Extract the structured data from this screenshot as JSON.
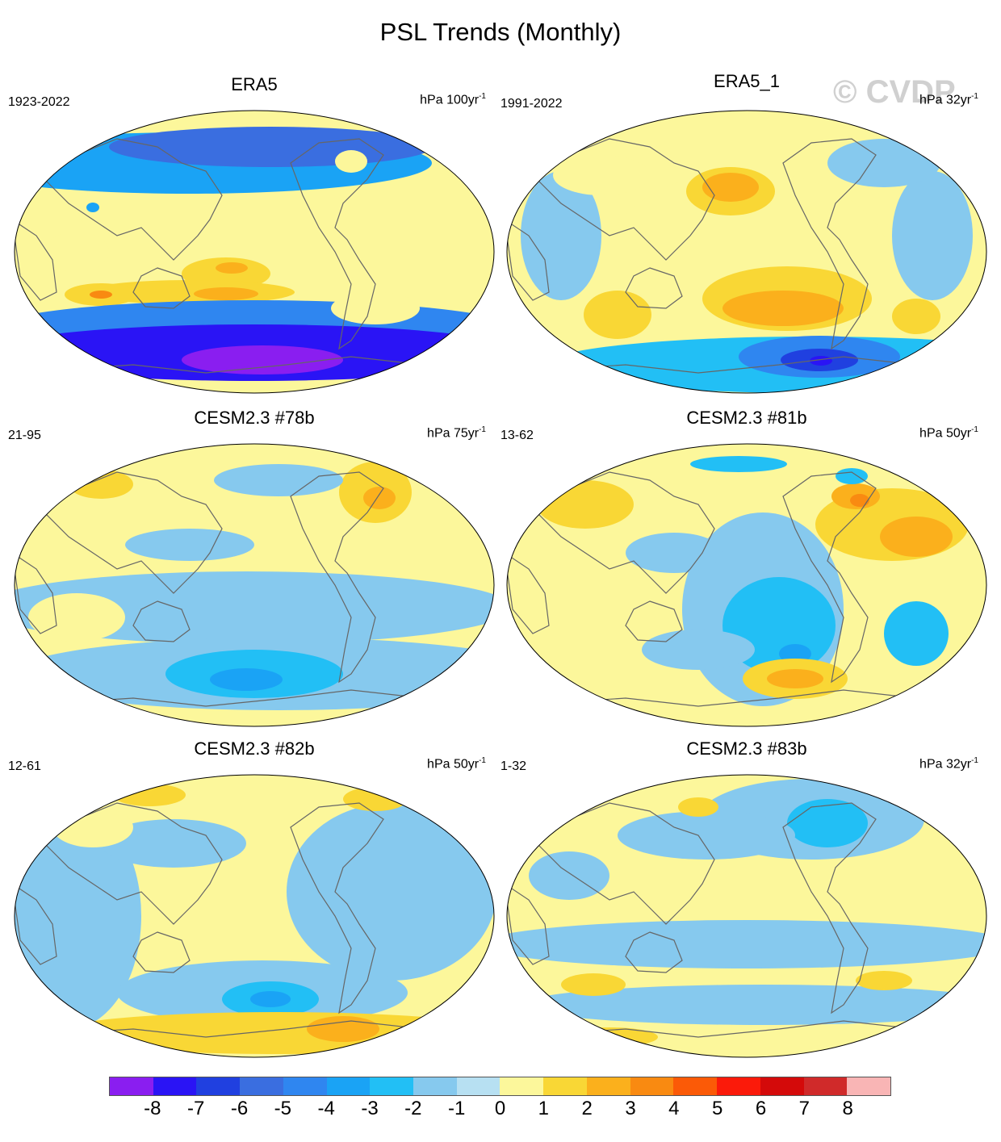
{
  "title": "PSL Trends (Monthly)",
  "watermark": "© CVDP",
  "panels": [
    {
      "title": "ERA5",
      "period": "1923-2022",
      "units": "hPa 100yr",
      "units_exp": "-1",
      "blobs": [
        {
          "cx": -35,
          "cy": 27,
          "rx": 55,
          "ry": 20,
          "c": 2
        },
        {
          "cx": -28,
          "cy": 20,
          "rx": 20,
          "ry": 7,
          "c": 3
        },
        {
          "cx": -80,
          "cy": 50,
          "rx": 130,
          "ry": 15,
          "c": 2
        },
        {
          "cx": -35,
          "cy": 52,
          "rx": 40,
          "ry": 8,
          "c": 3
        },
        {
          "cx": -190,
          "cy": 53,
          "rx": 45,
          "ry": 14,
          "c": 2
        },
        {
          "cx": -190,
          "cy": 53,
          "rx": 14,
          "ry": 5,
          "c": 4
        },
        {
          "cx": 0,
          "cy": 98,
          "rx": 330,
          "ry": 38,
          "c": -4
        },
        {
          "cx": 0,
          "cy": 125,
          "rx": 330,
          "ry": 35,
          "c": -7
        },
        {
          "cx": 10,
          "cy": 134,
          "rx": 100,
          "ry": 18,
          "c": -8
        },
        {
          "cx": -80,
          "cy": -110,
          "rx": 300,
          "ry": 38,
          "c": -3
        },
        {
          "cx": 20,
          "cy": -130,
          "rx": 200,
          "ry": 25,
          "c": -5
        },
        {
          "cx": 120,
          "cy": -112,
          "rx": 20,
          "ry": 14,
          "c": 1
        },
        {
          "cx": -195,
          "cy": -52,
          "rx": 30,
          "ry": 18,
          "c": 1
        },
        {
          "cx": -200,
          "cy": -55,
          "rx": 8,
          "ry": 6,
          "c": -3
        },
        {
          "cx": 150,
          "cy": 70,
          "rx": 55,
          "ry": 20,
          "c": 1
        },
        {
          "cx": -220,
          "cy": 0,
          "rx": 40,
          "ry": 25,
          "c": 1
        }
      ]
    },
    {
      "title": "ERA5_1",
      "period": "1991-2022",
      "units": "hPa 32yr",
      "units_exp": "-1",
      "blobs": [
        {
          "cx": 0,
          "cy": 20,
          "rx": 180,
          "ry": 120,
          "c": 1
        },
        {
          "cx": -20,
          "cy": -75,
          "rx": 55,
          "ry": 30,
          "c": 2
        },
        {
          "cx": -20,
          "cy": -80,
          "rx": 35,
          "ry": 18,
          "c": 3
        },
        {
          "cx": 50,
          "cy": 58,
          "rx": 105,
          "ry": 40,
          "c": 2
        },
        {
          "cx": 45,
          "cy": 70,
          "rx": 75,
          "ry": 22,
          "c": 3
        },
        {
          "cx": -160,
          "cy": 78,
          "rx": 42,
          "ry": 30,
          "c": 2
        },
        {
          "cx": 210,
          "cy": 80,
          "rx": 30,
          "ry": 22,
          "c": 2
        },
        {
          "cx": 80,
          "cy": 140,
          "rx": 330,
          "ry": 35,
          "c": -2
        },
        {
          "cx": 90,
          "cy": 130,
          "rx": 100,
          "ry": 26,
          "c": -4
        },
        {
          "cx": 90,
          "cy": 134,
          "rx": 48,
          "ry": 14,
          "c": -6
        },
        {
          "cx": 92,
          "cy": 135,
          "rx": 14,
          "ry": 6,
          "c": -7
        },
        {
          "cx": -230,
          "cy": -20,
          "rx": 50,
          "ry": 80,
          "c": -1
        },
        {
          "cx": 230,
          "cy": -20,
          "rx": 50,
          "ry": 80,
          "c": -1
        },
        {
          "cx": 170,
          "cy": -110,
          "rx": 70,
          "ry": 30,
          "c": -1
        },
        {
          "cx": -180,
          "cy": -95,
          "rx": 60,
          "ry": 25,
          "c": 1
        }
      ]
    },
    {
      "title": "CESM2.3 #78b",
      "period": "21-95",
      "units": "hPa 75yr",
      "units_exp": "-1",
      "blobs": [
        {
          "cx": -10,
          "cy": 28,
          "rx": 330,
          "ry": 45,
          "c": -1
        },
        {
          "cx": 30,
          "cy": 110,
          "rx": 330,
          "ry": 45,
          "c": -1
        },
        {
          "cx": 0,
          "cy": 110,
          "rx": 110,
          "ry": 30,
          "c": -2
        },
        {
          "cx": -10,
          "cy": 117,
          "rx": 45,
          "ry": 14,
          "c": -3
        },
        {
          "cx": 150,
          "cy": -115,
          "rx": 45,
          "ry": 38,
          "c": 2
        },
        {
          "cx": 155,
          "cy": -108,
          "rx": 20,
          "ry": 14,
          "c": 3
        },
        {
          "cx": -190,
          "cy": -125,
          "rx": 40,
          "ry": 18,
          "c": 2
        },
        {
          "cx": -80,
          "cy": -50,
          "rx": 80,
          "ry": 20,
          "c": -1
        },
        {
          "cx": 30,
          "cy": -130,
          "rx": 80,
          "ry": 20,
          "c": -1
        },
        {
          "cx": -220,
          "cy": 40,
          "rx": 60,
          "ry": 30,
          "c": 1
        }
      ]
    },
    {
      "title": "CESM2.3 #81b",
      "period": "13-62",
      "units": "hPa 50yr",
      "units_exp": "-1",
      "blobs": [
        {
          "cx": 20,
          "cy": 30,
          "rx": 100,
          "ry": 120,
          "c": -1
        },
        {
          "cx": 40,
          "cy": 50,
          "rx": 70,
          "ry": 60,
          "c": -2
        },
        {
          "cx": 60,
          "cy": 85,
          "rx": 20,
          "ry": 12,
          "c": -3
        },
        {
          "cx": 60,
          "cy": 116,
          "rx": 65,
          "ry": 25,
          "c": 2
        },
        {
          "cx": 60,
          "cy": 116,
          "rx": 35,
          "ry": 12,
          "c": 3
        },
        {
          "cx": 180,
          "cy": -75,
          "rx": 95,
          "ry": 45,
          "c": 2
        },
        {
          "cx": 210,
          "cy": -60,
          "rx": 45,
          "ry": 25,
          "c": 3
        },
        {
          "cx": 135,
          "cy": -110,
          "rx": 30,
          "ry": 16,
          "c": 3
        },
        {
          "cx": 140,
          "cy": -105,
          "rx": 12,
          "ry": 8,
          "c": 4
        },
        {
          "cx": 130,
          "cy": -135,
          "rx": 20,
          "ry": 10,
          "c": -2
        },
        {
          "cx": -200,
          "cy": -100,
          "rx": 60,
          "ry": 30,
          "c": 2
        },
        {
          "cx": -10,
          "cy": -150,
          "rx": 60,
          "ry": 10,
          "c": -2
        },
        {
          "cx": 210,
          "cy": 60,
          "rx": 40,
          "ry": 40,
          "c": -2
        },
        {
          "cx": -90,
          "cy": -40,
          "rx": 60,
          "ry": 25,
          "c": -1
        },
        {
          "cx": -60,
          "cy": 80,
          "rx": 70,
          "ry": 25,
          "c": -1
        }
      ]
    },
    {
      "title": "CESM2.3 #82b",
      "period": "12-61",
      "units": "hPa 50yr",
      "units_exp": "-1",
      "blobs": [
        {
          "cx": -230,
          "cy": 0,
          "rx": 90,
          "ry": 140,
          "c": -1
        },
        {
          "cx": 170,
          "cy": -30,
          "rx": 130,
          "ry": 110,
          "c": -1
        },
        {
          "cx": 10,
          "cy": 95,
          "rx": 180,
          "ry": 40,
          "c": -1
        },
        {
          "cx": 20,
          "cy": 103,
          "rx": 60,
          "ry": 22,
          "c": -2
        },
        {
          "cx": 20,
          "cy": 103,
          "rx": 25,
          "ry": 10,
          "c": -3
        },
        {
          "cx": 30,
          "cy": 145,
          "rx": 280,
          "ry": 26,
          "c": 2
        },
        {
          "cx": 110,
          "cy": 140,
          "rx": 45,
          "ry": 16,
          "c": 3
        },
        {
          "cx": -130,
          "cy": -150,
          "rx": 45,
          "ry": 14,
          "c": 2
        },
        {
          "cx": 150,
          "cy": -145,
          "rx": 40,
          "ry": 15,
          "c": 2
        },
        {
          "cx": -100,
          "cy": -90,
          "rx": 90,
          "ry": 30,
          "c": -1
        },
        {
          "cx": -200,
          "cy": -110,
          "rx": 50,
          "ry": 25,
          "c": 1
        }
      ]
    },
    {
      "title": "CESM2.3 #83b",
      "period": "1-32",
      "units": "hPa 32yr",
      "units_exp": "-1",
      "blobs": [
        {
          "cx": 80,
          "cy": -120,
          "rx": 140,
          "ry": 50,
          "c": -1
        },
        {
          "cx": 100,
          "cy": -115,
          "rx": 50,
          "ry": 30,
          "c": -2
        },
        {
          "cx": -50,
          "cy": -100,
          "rx": 110,
          "ry": 30,
          "c": -1
        },
        {
          "cx": -60,
          "cy": -135,
          "rx": 25,
          "ry": 12,
          "c": 2
        },
        {
          "cx": 0,
          "cy": 35,
          "rx": 330,
          "ry": 30,
          "c": -1
        },
        {
          "cx": 20,
          "cy": 110,
          "rx": 300,
          "ry": 25,
          "c": -1
        },
        {
          "cx": -190,
          "cy": 85,
          "rx": 40,
          "ry": 14,
          "c": 2
        },
        {
          "cx": 170,
          "cy": 80,
          "rx": 35,
          "ry": 12,
          "c": 2
        },
        {
          "cx": -170,
          "cy": 150,
          "rx": 60,
          "ry": 12,
          "c": 2
        },
        {
          "cx": -220,
          "cy": -50,
          "rx": 50,
          "ry": 30,
          "c": -1
        }
      ]
    }
  ],
  "colorbar": {
    "ticks": [
      "-8",
      "-7",
      "-6",
      "-5",
      "-4",
      "-3",
      "-2",
      "-1",
      "0",
      "1",
      "2",
      "3",
      "4",
      "5",
      "6",
      "7",
      "8"
    ],
    "colors": [
      "#8a1ef0",
      "#2a14f5",
      "#2040e0",
      "#3a6ee0",
      "#2f86f0",
      "#1aa3f5",
      "#22bff5",
      "#86c9ee",
      "#b7e0f2",
      "#fcf79b",
      "#f9d735",
      "#fbb01c",
      "#f98a11",
      "#fb5a07",
      "#fb1a0a",
      "#d40a0a",
      "#d02a2a",
      "#f9b5b5"
    ]
  }
}
